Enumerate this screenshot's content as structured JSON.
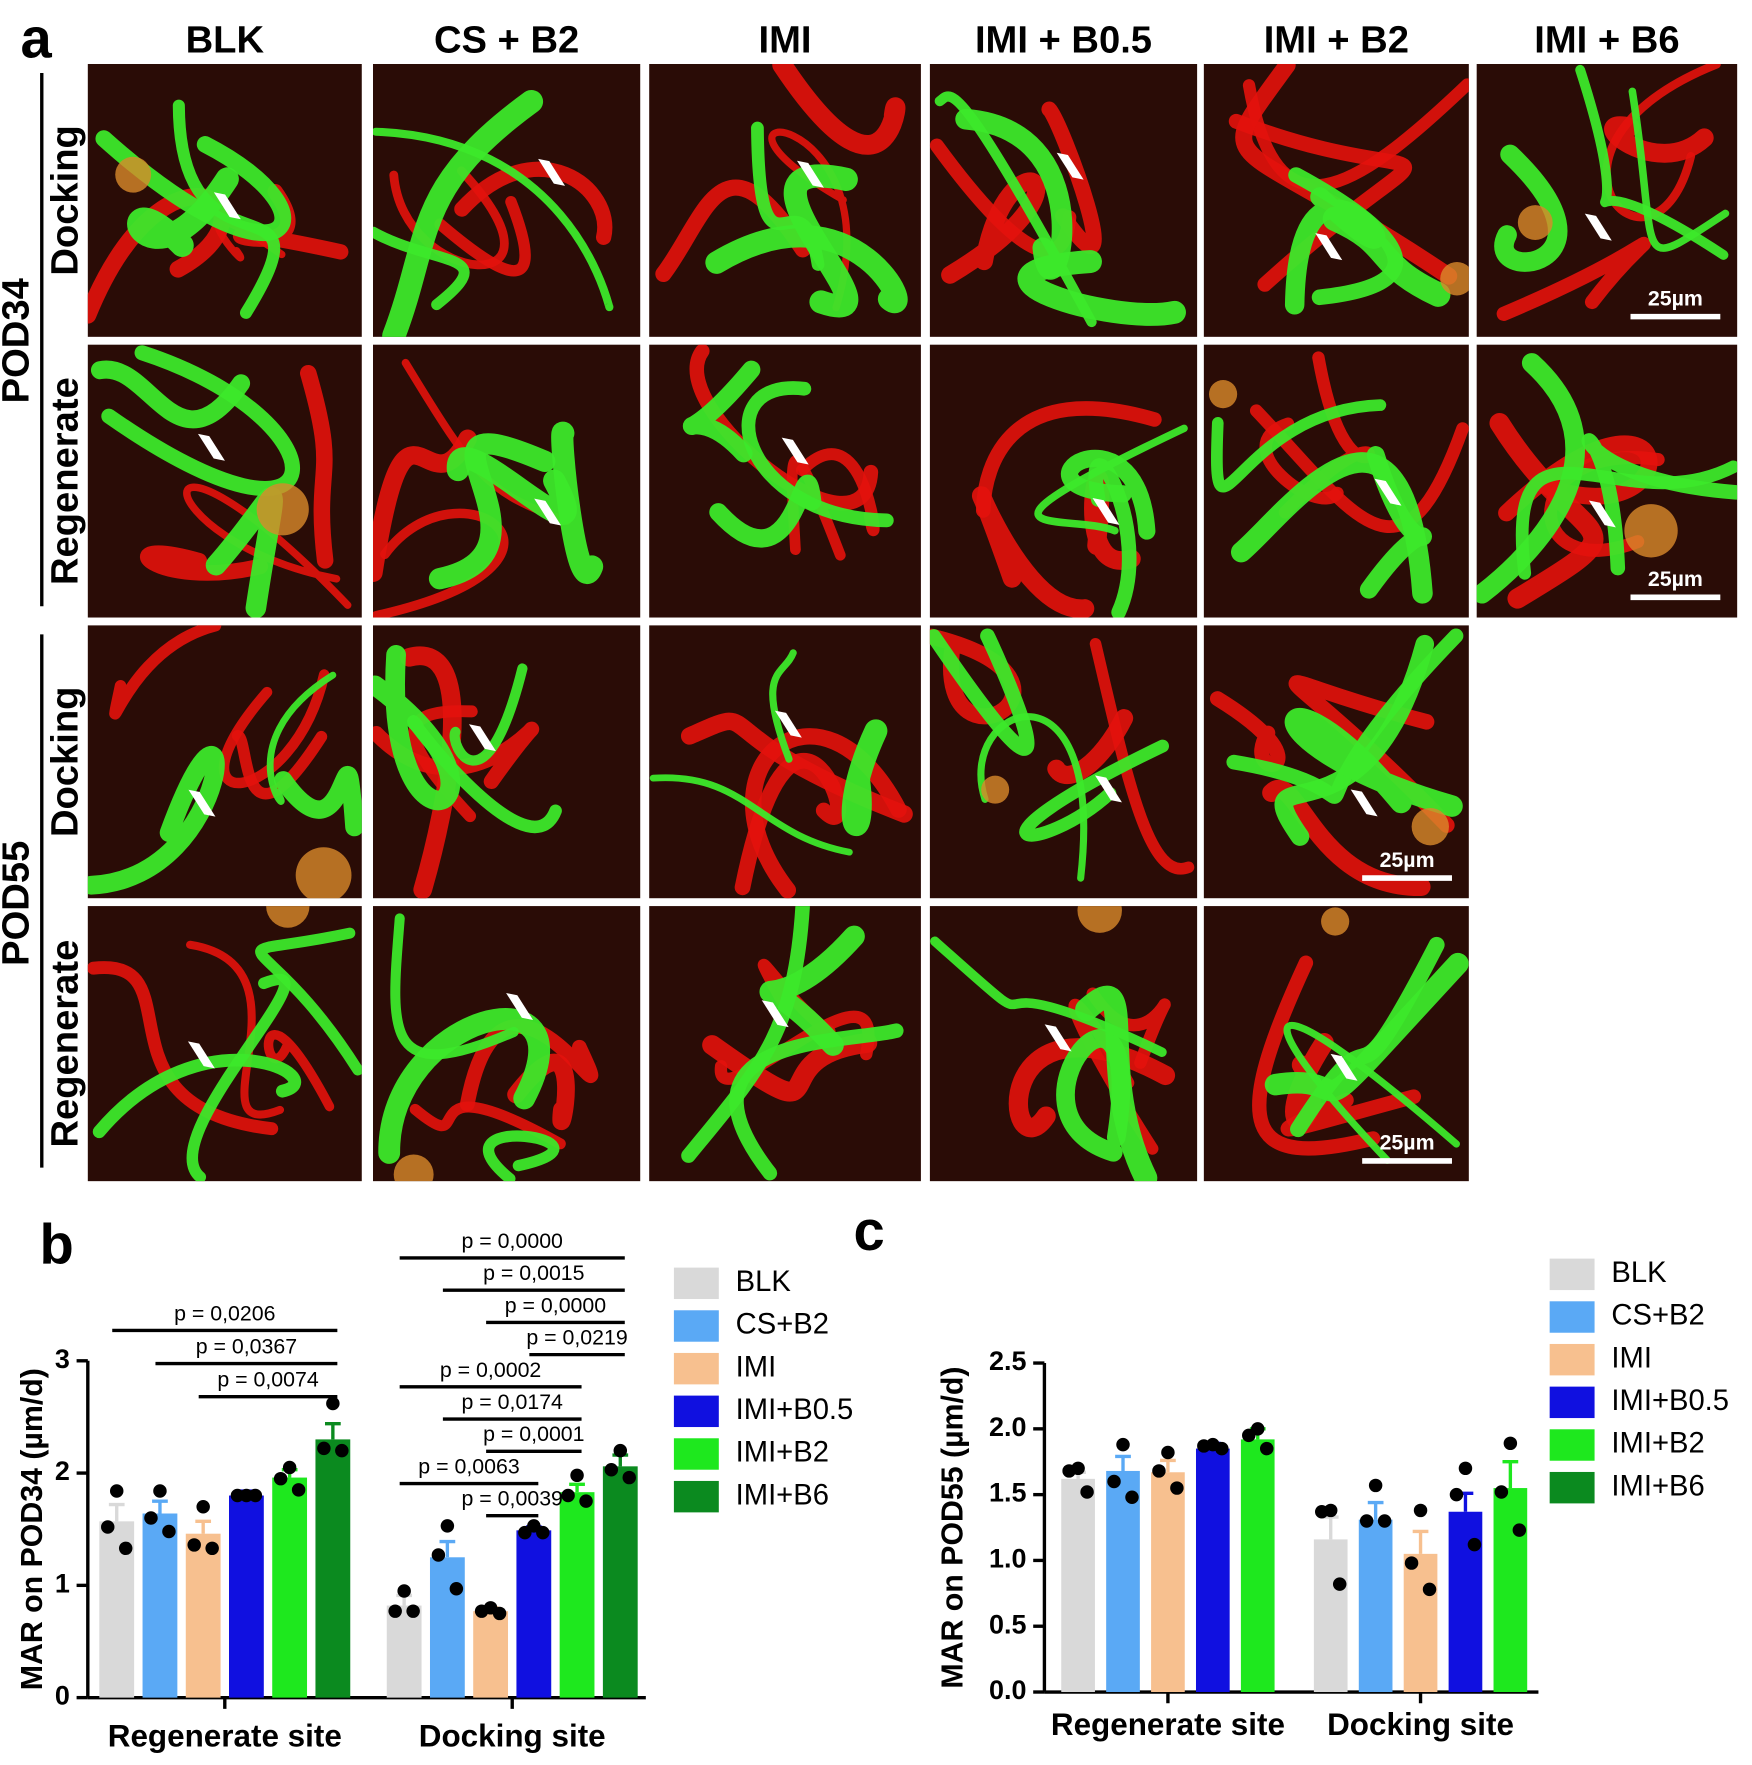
{
  "panel_labels": [
    "a",
    "b",
    "c"
  ],
  "panel_a": {
    "columns": [
      "BLK",
      "CS + B2",
      "IMI",
      "IMI + B0.5",
      "IMI + B2",
      "IMI + B6"
    ],
    "groups": [
      {
        "name": "POD34",
        "rows": [
          "Docking",
          "Regenerate"
        ]
      },
      {
        "name": "POD55",
        "rows": [
          "Docking",
          "Regenerate"
        ]
      }
    ],
    "scale_bars": [
      "25µm",
      "25µm",
      "25µm",
      "25µm"
    ]
  },
  "chart_data": [
    {
      "type": "bar",
      "y_label": "MAR on POD34 (µm/d)",
      "categories": [
        "Regenerate site",
        "Docking site"
      ],
      "ylim": [
        0,
        3
      ],
      "yticks": [
        0,
        1,
        2,
        3
      ],
      "series": [
        {
          "name": "BLK",
          "color": "#d9d9d9",
          "values": [
            1.57,
            0.82
          ],
          "errors": [
            0.15,
            0.09
          ],
          "points": [
            [
              1.84,
              1.52,
              1.33
            ],
            [
              0.95,
              0.77,
              0.77
            ]
          ]
        },
        {
          "name": "CS+B2",
          "color": "#5aa9f5",
          "values": [
            1.64,
            1.25
          ],
          "errors": [
            0.11,
            0.14
          ],
          "points": [
            [
              1.84,
              1.6,
              1.48
            ],
            [
              1.53,
              1.27,
              0.97
            ]
          ]
        },
        {
          "name": "IMI",
          "color": "#f7c08f",
          "values": [
            1.46,
            0.77
          ],
          "errors": [
            0.11,
            0.03
          ],
          "points": [
            [
              1.7,
              1.36,
              1.33
            ],
            [
              0.8,
              0.77,
              0.75
            ]
          ]
        },
        {
          "name": "IMI+B0.5",
          "color": "#1010e0",
          "values": [
            1.8,
            1.49
          ],
          "errors": [
            0.04,
            0.03
          ],
          "points": [
            [
              1.8,
              1.8,
              1.8
            ],
            [
              1.53,
              1.47,
              1.47
            ]
          ]
        },
        {
          "name": "IMI+B2",
          "color": "#1ee81e",
          "values": [
            1.96,
            1.83
          ],
          "errors": [
            0.07,
            0.07
          ],
          "points": [
            [
              2.05,
              1.95,
              1.85
            ],
            [
              1.98,
              1.8,
              1.75
            ]
          ]
        },
        {
          "name": "IMI+B6",
          "color": "#0b8a1f",
          "values": [
            2.3,
            2.06
          ],
          "errors": [
            0.14,
            0.1
          ],
          "points": [
            [
              2.62,
              2.22,
              2.2
            ],
            [
              2.2,
              2.03,
              1.96
            ]
          ]
        }
      ],
      "significance": [
        {
          "label": "p = 0,0206",
          "category": 0,
          "from": 0,
          "to": 5
        },
        {
          "label": "p = 0,0367",
          "category": 0,
          "from": 1,
          "to": 5
        },
        {
          "label": "p = 0,0074",
          "category": 0,
          "from": 2,
          "to": 5
        },
        {
          "label": "p = 0,0000",
          "category": 1,
          "from": 0,
          "to": 5
        },
        {
          "label": "p = 0,0015",
          "category": 1,
          "from": 1,
          "to": 5
        },
        {
          "label": "p = 0,0000",
          "category": 1,
          "from": 2,
          "to": 5
        },
        {
          "label": "p = 0,0219",
          "category": 1,
          "from": 3,
          "to": 5
        },
        {
          "label": "p = 0,0002",
          "category": 1,
          "from": 0,
          "to": 4
        },
        {
          "label": "p = 0,0174",
          "category": 1,
          "from": 1,
          "to": 4
        },
        {
          "label": "p = 0,0001",
          "category": 1,
          "from": 2,
          "to": 4
        },
        {
          "label": "p = 0,0063",
          "category": 1,
          "from": 0,
          "to": 3
        },
        {
          "label": "p = 0,0039",
          "category": 1,
          "from": 2,
          "to": 3
        }
      ]
    },
    {
      "type": "bar",
      "y_label": "MAR on POD55 (µm/d)",
      "categories": [
        "Regenerate site",
        "Docking site"
      ],
      "ylim": [
        0,
        2.5
      ],
      "yticks": [
        {
          "value": 0,
          "label": "0.0"
        },
        0.5,
        {
          "value": 1,
          "label": "1.0"
        },
        1.5,
        {
          "value": 2,
          "label": "2.0"
        },
        2.5
      ],
      "series": [
        {
          "name": "BLK",
          "color": "#d9d9d9",
          "values": [
            1.62,
            1.16
          ],
          "errors": [
            0.05,
            0.17
          ],
          "points": [
            [
              1.7,
              1.68,
              1.52
            ],
            [
              1.38,
              1.37,
              0.82
            ]
          ]
        },
        {
          "name": "CS+B2",
          "color": "#5aa9f5",
          "values": [
            1.68,
            1.31
          ],
          "errors": [
            0.11,
            0.13
          ],
          "points": [
            [
              1.88,
              1.6,
              1.48
            ],
            [
              1.57,
              1.3,
              1.3
            ]
          ]
        },
        {
          "name": "IMI",
          "color": "#f7c08f",
          "values": [
            1.67,
            1.05
          ],
          "errors": [
            0.09,
            0.17
          ],
          "points": [
            [
              1.82,
              1.68,
              1.55
            ],
            [
              1.38,
              0.98,
              0.78
            ]
          ]
        },
        {
          "name": "IMI+B0.5",
          "color": "#1010e0",
          "values": [
            1.85,
            1.37
          ],
          "errors": [
            0.04,
            0.14
          ],
          "points": [
            [
              1.88,
              1.87,
              1.85
            ],
            [
              1.7,
              1.5,
              1.12
            ]
          ]
        },
        {
          "name": "IMI+B2",
          "color": "#1ee81e",
          "values": [
            1.92,
            1.55
          ],
          "errors": [
            0.08,
            0.2
          ],
          "points": [
            [
              2.0,
              1.95,
              1.85
            ],
            [
              1.89,
              1.52,
              1.23
            ]
          ]
        },
        {
          "name": "IMI+B6",
          "color": "#0b8a1f",
          "values": [
            null,
            null
          ]
        }
      ]
    }
  ]
}
